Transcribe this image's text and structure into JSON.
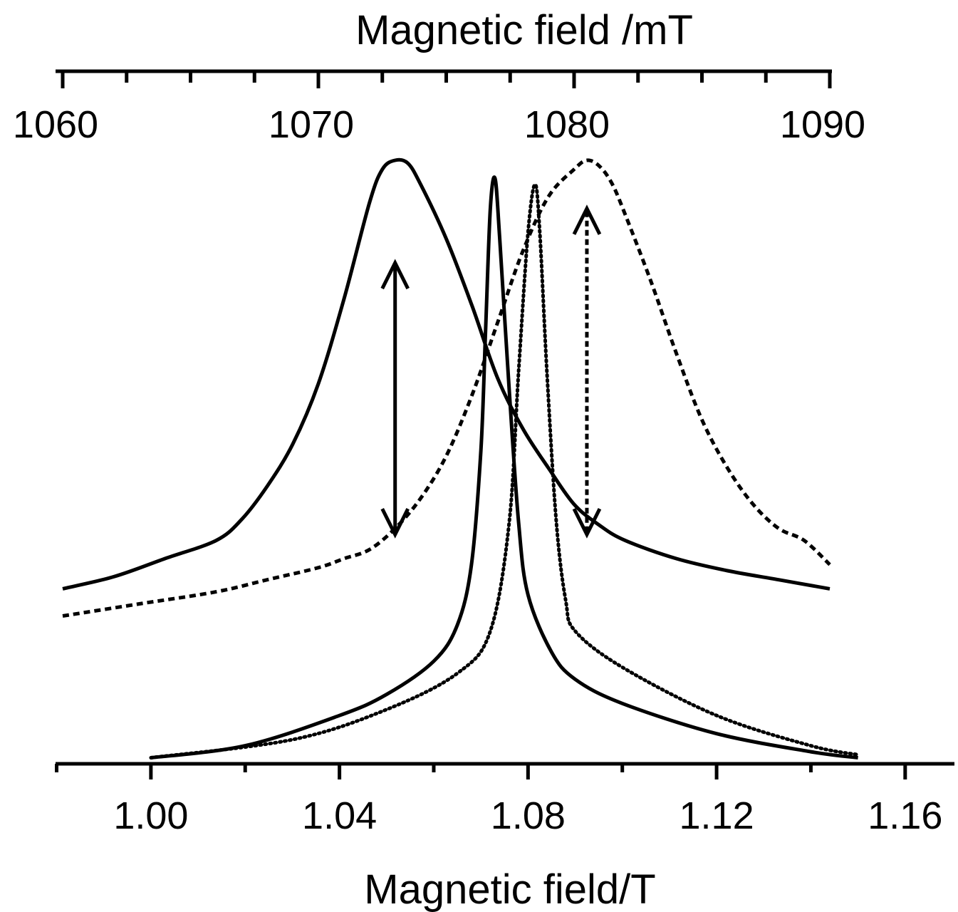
{
  "chart_data": {
    "type": "line",
    "top_axis": {
      "label": "Magnetic field /mT",
      "range": [
        1060,
        1090
      ],
      "ticks": [
        "1060",
        "1070",
        "1080",
        "1090"
      ],
      "tick_values": [
        1060,
        1070,
        1080,
        1090
      ],
      "minor_ticks": [
        1062.5,
        1065,
        1067.5,
        1072.5,
        1075,
        1077.5,
        1082.5,
        1085,
        1087.5
      ]
    },
    "bottom_axis": {
      "label": "Magnetic field/T",
      "range": [
        0.98,
        1.17
      ],
      "ticks": [
        "1.00",
        "1.04",
        "1.08",
        "1.12",
        "1.16"
      ],
      "tick_values": [
        1.0,
        1.04,
        1.08,
        1.12,
        1.16
      ],
      "minor_ticks": [
        0.98,
        1.02,
        1.06,
        1.1,
        1.14
      ]
    },
    "y_axis": {
      "range": [
        0,
        1.0
      ],
      "shown": false
    },
    "grid": false,
    "series": [
      {
        "axis": "top",
        "style": "solid",
        "x": [
          1060,
          1062,
          1064,
          1066,
          1067,
          1068,
          1069,
          1070,
          1071,
          1072,
          1072.5,
          1073,
          1073.5,
          1074,
          1075,
          1076,
          1077,
          1078,
          1079,
          1080,
          1081,
          1082,
          1084,
          1086,
          1088,
          1090
        ],
        "y": [
          0.29,
          0.31,
          0.34,
          0.37,
          0.405,
          0.46,
          0.53,
          0.63,
          0.77,
          0.93,
          0.985,
          1.0,
          0.995,
          0.96,
          0.87,
          0.76,
          0.64,
          0.555,
          0.49,
          0.43,
          0.395,
          0.37,
          0.34,
          0.32,
          0.305,
          0.29
        ]
      },
      {
        "axis": "top",
        "style": "dashed",
        "x": [
          1060,
          1063,
          1066,
          1068,
          1070,
          1071,
          1072,
          1073,
          1074,
          1075,
          1076,
          1077,
          1078,
          1079,
          1080,
          1080.5,
          1081,
          1081.5,
          1082,
          1083,
          1084,
          1085,
          1086,
          1087,
          1088,
          1089,
          1090
        ],
        "y": [
          0.245,
          0.265,
          0.285,
          0.305,
          0.325,
          0.34,
          0.355,
          0.39,
          0.44,
          0.51,
          0.61,
          0.73,
          0.85,
          0.94,
          0.985,
          1.0,
          0.99,
          0.96,
          0.91,
          0.8,
          0.68,
          0.57,
          0.49,
          0.43,
          0.39,
          0.37,
          0.33
        ]
      },
      {
        "axis": "bottom",
        "style": "solid",
        "x": [
          1.0,
          1.02,
          1.04,
          1.05,
          1.06,
          1.065,
          1.068,
          1.07,
          1.071,
          1.072,
          1.073,
          1.074,
          1.076,
          1.078,
          1.08,
          1.085,
          1.09,
          1.1,
          1.12,
          1.14,
          1.15
        ],
        "y": [
          0.01,
          0.03,
          0.08,
          0.115,
          0.17,
          0.23,
          0.33,
          0.52,
          0.72,
          0.92,
          0.97,
          0.87,
          0.62,
          0.4,
          0.28,
          0.185,
          0.14,
          0.1,
          0.05,
          0.02,
          0.01
        ]
      },
      {
        "axis": "bottom",
        "style": "dotted",
        "x": [
          1.0,
          1.03,
          1.05,
          1.065,
          1.072,
          1.076,
          1.078,
          1.08,
          1.0815,
          1.0825,
          1.084,
          1.086,
          1.088,
          1.09,
          1.1,
          1.12,
          1.14,
          1.15
        ],
        "y": [
          0.01,
          0.04,
          0.09,
          0.15,
          0.22,
          0.4,
          0.65,
          0.88,
          0.96,
          0.88,
          0.65,
          0.4,
          0.27,
          0.22,
          0.16,
          0.08,
          0.03,
          0.015
        ]
      }
    ],
    "annotations": [
      {
        "type": "double-arrow",
        "style": "solid",
        "axis": "top",
        "x": 1073,
        "y_from": 0.83,
        "y_to": 0.38
      },
      {
        "type": "double-arrow",
        "style": "dashed",
        "axis": "top",
        "x": 1080.5,
        "y_from": 0.92,
        "y_to": 0.38
      }
    ]
  }
}
